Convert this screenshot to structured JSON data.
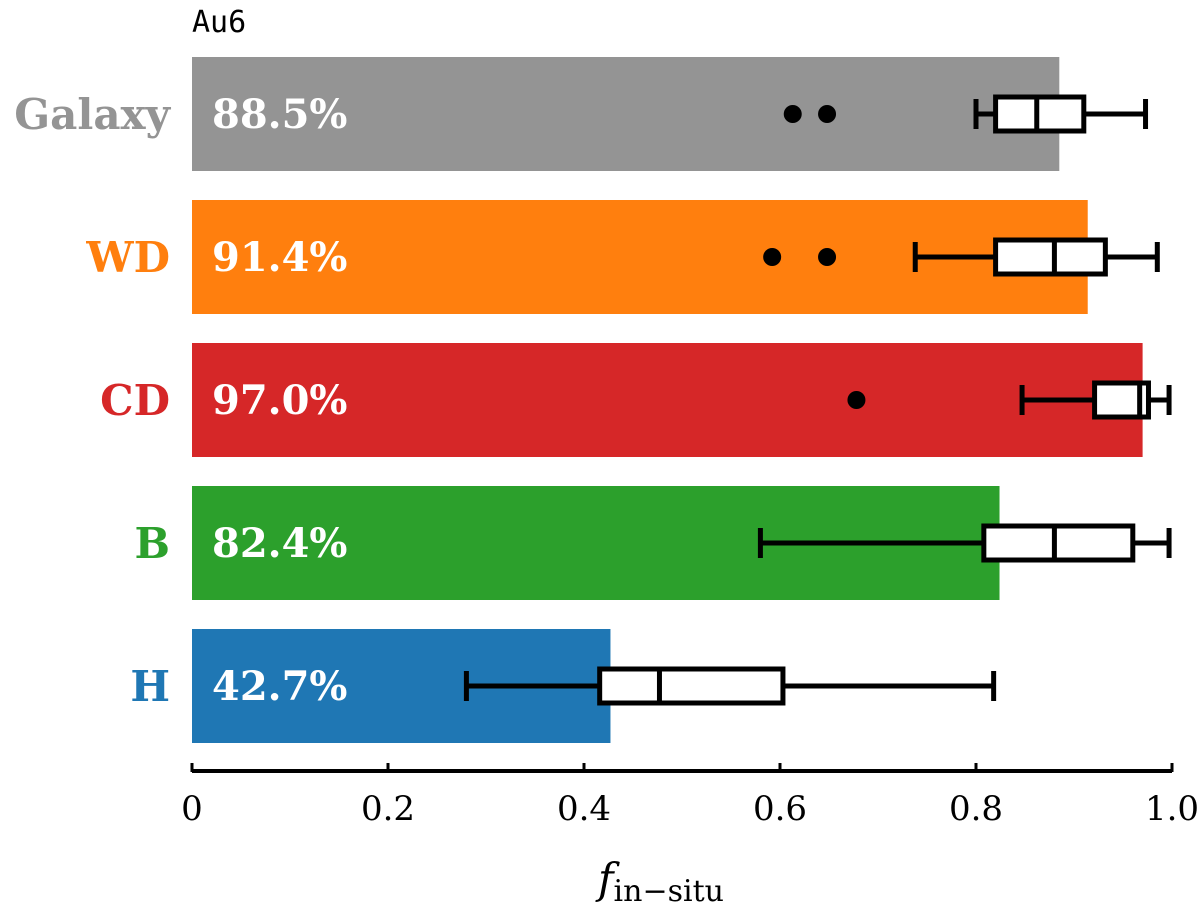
{
  "chart_data": {
    "type": "bar",
    "orientation": "horizontal",
    "title": "Au6",
    "xlabel": "f",
    "xlabel_subscript": "in−situ",
    "xlim": [
      0,
      1.0
    ],
    "xticks": [
      0,
      0.2,
      0.4,
      0.6,
      0.8,
      1.0
    ],
    "xtick_labels": [
      "0",
      "0.2",
      "0.4",
      "0.6",
      "0.8",
      "1.0"
    ],
    "categories": [
      "Galaxy",
      "WD",
      "CD",
      "B",
      "H"
    ],
    "values": [
      0.885,
      0.914,
      0.97,
      0.824,
      0.427
    ],
    "value_labels": [
      "88.5%",
      "91.4%",
      "97.0%",
      "82.4%",
      "42.7%"
    ],
    "colors": [
      "#949494",
      "#ff7f0e",
      "#d62728",
      "#2ca02c",
      "#1f77b4"
    ],
    "boxplots": [
      {
        "category": "Galaxy",
        "whisker_low": 0.8,
        "q1": 0.82,
        "median": 0.862,
        "q3": 0.91,
        "whisker_high": 0.973,
        "outliers": [
          0.613,
          0.648
        ]
      },
      {
        "category": "WD",
        "whisker_low": 0.738,
        "q1": 0.82,
        "median": 0.88,
        "q3": 0.932,
        "whisker_high": 0.985,
        "outliers": [
          0.592,
          0.648
        ]
      },
      {
        "category": "CD",
        "whisker_low": 0.847,
        "q1": 0.921,
        "median": 0.967,
        "q3": 0.976,
        "whisker_high": 0.997,
        "outliers": [
          0.678
        ]
      },
      {
        "category": "B",
        "whisker_low": 0.58,
        "q1": 0.808,
        "median": 0.88,
        "q3": 0.96,
        "whisker_high": 0.997,
        "outliers": []
      },
      {
        "category": "H",
        "whisker_low": 0.28,
        "q1": 0.416,
        "median": 0.477,
        "q3": 0.603,
        "whisker_high": 0.818,
        "outliers": []
      }
    ]
  }
}
